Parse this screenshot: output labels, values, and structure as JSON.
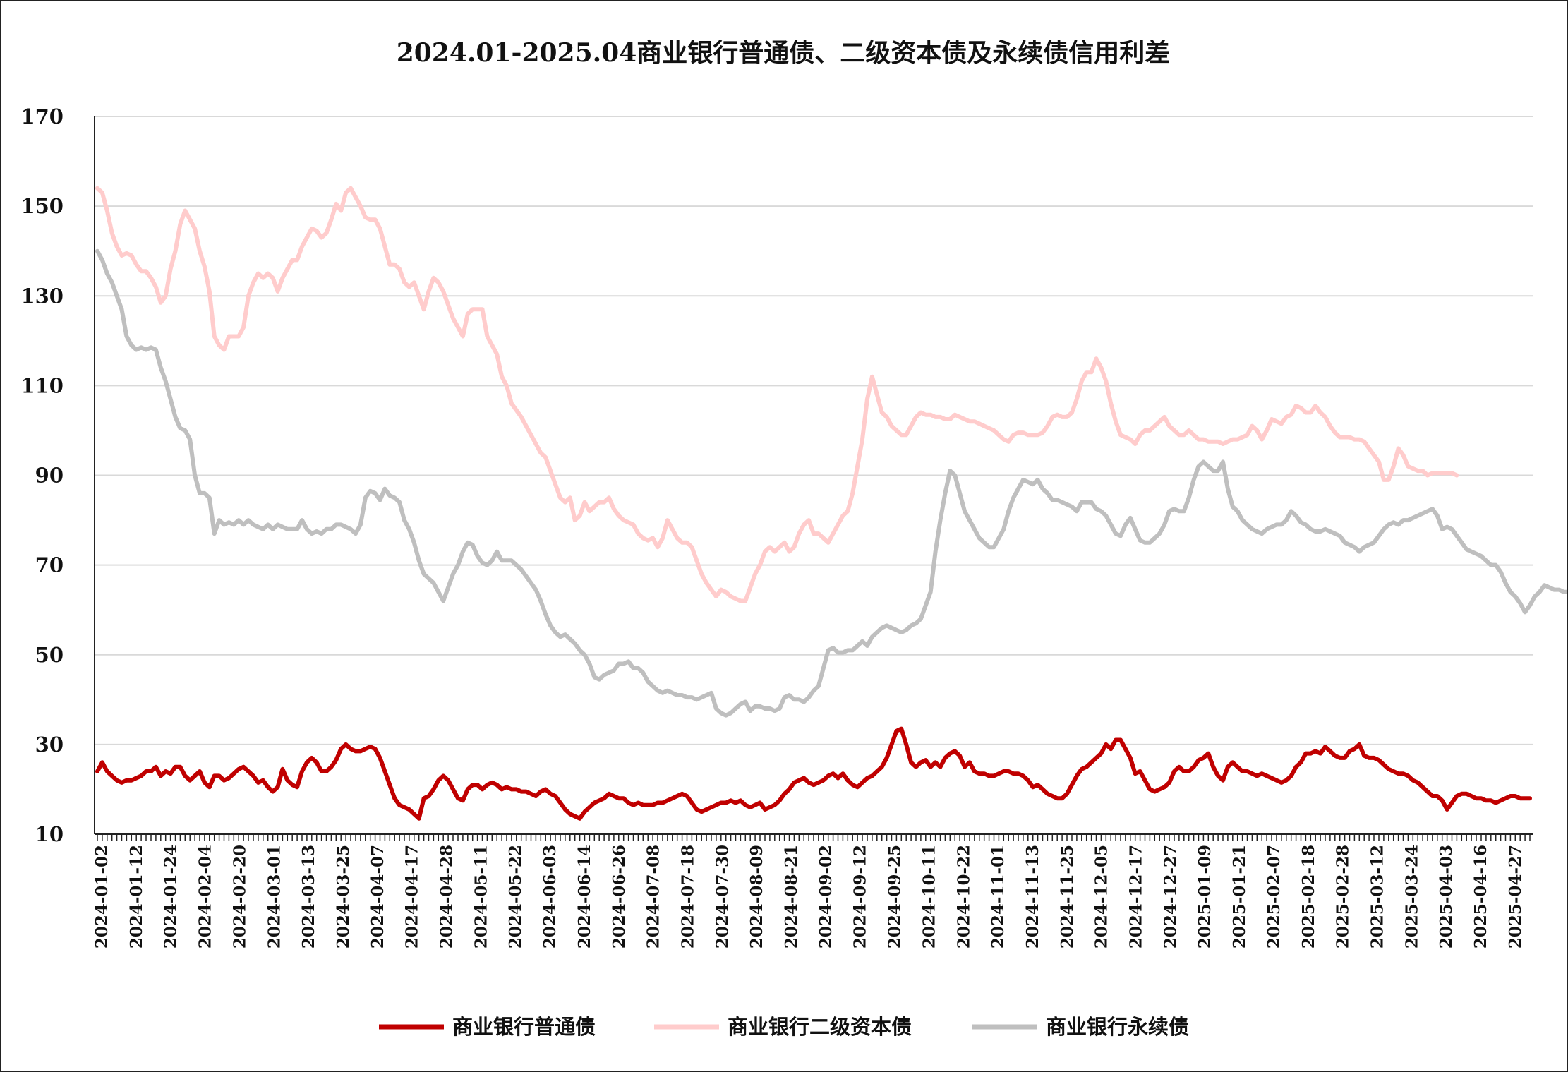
{
  "chart_data": {
    "type": "line",
    "title": "2024.01-2025.04商业银行普通债、二级资本债及永续债信用利差",
    "xlabel": "",
    "ylabel": "",
    "ylim": [
      10,
      170
    ],
    "yticks": [
      10,
      30,
      50,
      70,
      90,
      110,
      130,
      150,
      170
    ],
    "grid": "horizontal",
    "legend_position": "bottom",
    "x_tick_labels": [
      "2024-01-02",
      "2024-01-12",
      "2024-01-24",
      "2024-02-04",
      "2024-02-20",
      "2024-03-01",
      "2024-03-13",
      "2024-03-25",
      "2024-04-07",
      "2024-04-17",
      "2024-04-28",
      "2024-05-11",
      "2024-05-22",
      "2024-06-03",
      "2024-06-14",
      "2024-06-26",
      "2024-07-08",
      "2024-07-18",
      "2024-07-30",
      "2024-08-09",
      "2024-08-21",
      "2024-09-02",
      "2024-09-12",
      "2024-09-25",
      "2024-10-11",
      "2024-10-22",
      "2024-11-01",
      "2024-11-13",
      "2024-11-25",
      "2024-12-05",
      "2024-12-17",
      "2024-12-27",
      "2025-01-09",
      "2025-01-21",
      "2025-02-07",
      "2025-02-18",
      "2025-02-28",
      "2025-03-12",
      "2025-03-24",
      "2025-04-03",
      "2025-04-16",
      "2025-04-27"
    ],
    "series": [
      {
        "name": "商业银行普通债",
        "color": "#c00000",
        "values": [
          24,
          26,
          24,
          23,
          22,
          21.5,
          22,
          22,
          22.5,
          23,
          24,
          24,
          25,
          23,
          24,
          23.5,
          25,
          25,
          23,
          22,
          23,
          24,
          21.5,
          20.5,
          23,
          23,
          22,
          22.5,
          23.5,
          24.5,
          25,
          24,
          23,
          21.5,
          22,
          20.5,
          19.5,
          20.5,
          24.5,
          22,
          21,
          20.5,
          24,
          26,
          27,
          26,
          24,
          24,
          25,
          26.5,
          29,
          30,
          29,
          28.5,
          28.5,
          29,
          29.5,
          29,
          27,
          24,
          21,
          18,
          16.5,
          16,
          15.5,
          14.5,
          13.5,
          18,
          18.5,
          20,
          22,
          23,
          22,
          20,
          18,
          17.5,
          20,
          21,
          21,
          20,
          21,
          21.5,
          21,
          20,
          20.5,
          20,
          20,
          19.5,
          19.5,
          19,
          18.5,
          19.5,
          20,
          19,
          18.5,
          17,
          15.5,
          14.5,
          14,
          13.5,
          15,
          16,
          17,
          17.5,
          18,
          19,
          18.5,
          18,
          18,
          17,
          16.5,
          17,
          16.5,
          16.5,
          16.5,
          17,
          17,
          17.5,
          18,
          18.5,
          19,
          18.5,
          17,
          15.5,
          15,
          15.5,
          16,
          16.5,
          17,
          17,
          17.5,
          17,
          17.5,
          16.5,
          16,
          16.5,
          17,
          15.5,
          16,
          16.5,
          17.5,
          19,
          20,
          21.5,
          22,
          22.5,
          21.5,
          21,
          21.5,
          22,
          23,
          23.5,
          22.5,
          23.5,
          22,
          21,
          20.5,
          21.5,
          22.5,
          23,
          24,
          25,
          27,
          30,
          33,
          33.5,
          30,
          26,
          25,
          26,
          26.5,
          25,
          26,
          25,
          27,
          28,
          28.5,
          27.5,
          25,
          26,
          24,
          23.5,
          23.5,
          23,
          23,
          23.5,
          24,
          24,
          23.5,
          23.5,
          23,
          22,
          20.5,
          21,
          20,
          19,
          18.5,
          18,
          18,
          19,
          21,
          23,
          24.5,
          25,
          26,
          27,
          28,
          30,
          29,
          31,
          31,
          29,
          27,
          23.5,
          24,
          22,
          20,
          19.5,
          20,
          20.5,
          21.5,
          24,
          25,
          24,
          24,
          25,
          26.5,
          27,
          28,
          25,
          23,
          22,
          25,
          26,
          25,
          24,
          24,
          23.5,
          23,
          23.5,
          23,
          22.5,
          22,
          21.5,
          22,
          23,
          25,
          26,
          28,
          28,
          28.5,
          28,
          29.5,
          28.5,
          27.5,
          27,
          27,
          28.5,
          29,
          30,
          27.5,
          27,
          27,
          26.5,
          25.5,
          24.5,
          24,
          23.5,
          23.5,
          23,
          22,
          21.5,
          20.5,
          19.5,
          18.5,
          18.5,
          17.5,
          15.5,
          17,
          18.5,
          19,
          19,
          18.5,
          18,
          18,
          17.5,
          17.5,
          17,
          17.5,
          18,
          18.5,
          18.5,
          18,
          18,
          18
        ]
      },
      {
        "name": "商业银行二级资本债",
        "color": "#ffcccc",
        "values": [
          154,
          153,
          149,
          144,
          141,
          139,
          139.5,
          139,
          137,
          135.5,
          135.5,
          134,
          132,
          128.5,
          130,
          136,
          140,
          146,
          149,
          147,
          145,
          140,
          136.5,
          131,
          121,
          119,
          118,
          121,
          121,
          121,
          123,
          130,
          133,
          135,
          134,
          135,
          134,
          131,
          134,
          136,
          138,
          138,
          141,
          143,
          145,
          144.5,
          143,
          144,
          147,
          150.5,
          149,
          153,
          154,
          152,
          150,
          147.5,
          147,
          147,
          145,
          141,
          137,
          137,
          136,
          133,
          132,
          133,
          130,
          127,
          131,
          134,
          133,
          131,
          128,
          125,
          123,
          121,
          126,
          127,
          127,
          127,
          121,
          119,
          117,
          112,
          110,
          106,
          104.5,
          103,
          101,
          99,
          97,
          95,
          94,
          91,
          88,
          85,
          84,
          85,
          80,
          81,
          84,
          82,
          83,
          84,
          84,
          85,
          82.5,
          81,
          80,
          79.5,
          79,
          77,
          76,
          75.5,
          76,
          74,
          76,
          80,
          78,
          76,
          75,
          75,
          74,
          71,
          68,
          66,
          64.5,
          63,
          64.5,
          64,
          63,
          62.5,
          62,
          62,
          65,
          68,
          70,
          73,
          74,
          73,
          74,
          75,
          73,
          74,
          77,
          79,
          80,
          77,
          77,
          76,
          75,
          77,
          79,
          81,
          82,
          86,
          92,
          98,
          107,
          112,
          108,
          104,
          103,
          101,
          100,
          99,
          99,
          101,
          103,
          104,
          103.5,
          103.5,
          103,
          103,
          102.5,
          102.5,
          103.5,
          103,
          102.5,
          102,
          102,
          101.5,
          101,
          100.5,
          100,
          99,
          98,
          97.5,
          99,
          99.5,
          99.5,
          99,
          99,
          99,
          99.5,
          101,
          103,
          103.5,
          103,
          103,
          104,
          107,
          111,
          113,
          113,
          116,
          114,
          111,
          106,
          102,
          99,
          98.5,
          98,
          97,
          99,
          100,
          100,
          101,
          102,
          103,
          101,
          100,
          99,
          99,
          100,
          99,
          98,
          98,
          97.5,
          97.5,
          97.5,
          97,
          97.5,
          98,
          98,
          98.5,
          99,
          101,
          100,
          98,
          100,
          102.5,
          102,
          101.5,
          103,
          103.5,
          105.5,
          105,
          104,
          104,
          105.5,
          104,
          103,
          101,
          99.5,
          98.5,
          98.5,
          98.5,
          98,
          98,
          97.5,
          96,
          94.5,
          93,
          89,
          89,
          92,
          96,
          94.5,
          92,
          91.5,
          91,
          91,
          90,
          90.5,
          90.5,
          90.5,
          90.5,
          90.5,
          90
        ]
      },
      {
        "name": "商业银行永续债",
        "color": "#bfbfbf",
        "values": [
          140,
          138,
          135,
          133,
          130,
          127,
          121,
          119,
          118,
          118.5,
          118,
          118.5,
          118,
          114,
          111,
          107,
          103,
          100.5,
          100,
          98,
          90,
          86,
          86,
          85,
          77,
          80,
          79,
          79.5,
          79,
          80,
          79,
          80,
          79,
          78.5,
          78,
          79,
          78,
          79,
          78.5,
          78,
          78,
          78,
          80,
          78,
          77,
          77.5,
          77,
          78,
          78,
          79,
          79,
          78.5,
          78,
          77,
          79,
          85,
          86.5,
          86,
          84.5,
          87,
          85.5,
          85,
          84,
          80,
          78,
          75,
          71,
          68,
          67,
          66,
          64,
          62,
          65,
          68,
          70,
          73,
          75,
          74.5,
          72,
          70.5,
          70,
          71,
          73,
          71,
          71,
          71,
          70,
          69,
          67.5,
          66,
          64.5,
          62,
          59,
          56.5,
          55,
          54,
          54.5,
          53.5,
          52.5,
          51,
          50,
          48,
          45,
          44.5,
          45.5,
          46,
          46.5,
          48,
          48,
          48.5,
          47,
          47,
          46,
          44,
          43,
          42,
          41.5,
          42,
          41.5,
          41,
          41,
          40.5,
          40.5,
          40,
          40.5,
          41,
          41.5,
          38,
          37,
          36.5,
          37,
          38,
          39,
          39.5,
          37.5,
          38.5,
          38.5,
          38,
          38,
          37.5,
          38,
          40.5,
          41,
          40,
          40,
          39.5,
          40.5,
          42,
          43,
          47,
          51,
          51.5,
          50.5,
          50.5,
          51,
          51,
          52,
          53,
          52,
          54,
          55,
          56,
          56.5,
          56,
          55.5,
          55,
          55.5,
          56.5,
          57,
          58,
          61,
          64,
          73,
          80,
          86,
          91,
          90,
          86,
          82,
          80,
          78,
          76,
          75,
          74,
          74,
          76,
          78,
          82,
          85,
          87,
          89,
          88.5,
          88,
          89,
          87,
          86,
          84.5,
          84.5,
          84,
          83.5,
          83,
          82,
          84,
          84,
          84,
          82.5,
          82,
          81,
          79,
          77,
          76.5,
          79,
          80.5,
          78,
          75.5,
          75,
          75,
          76,
          77,
          79,
          82,
          82.5,
          82,
          82,
          85,
          89,
          92,
          93,
          92,
          91,
          91,
          93,
          87,
          83,
          82,
          80,
          79,
          78,
          77.5,
          77,
          78,
          78.5,
          79,
          79,
          80,
          82,
          81,
          79.5,
          79,
          78,
          77.5,
          77.5,
          78,
          77.5,
          77,
          76.5,
          75,
          74.5,
          74,
          73,
          74,
          74.5,
          75,
          76.5,
          78,
          79,
          79.5,
          79,
          80,
          80,
          80.5,
          81,
          81.5,
          82,
          82.5,
          81,
          78,
          78.5,
          78,
          76.5,
          75,
          73.5,
          73,
          72.5,
          72,
          71,
          70,
          70,
          68.5,
          66,
          64,
          63,
          61.5,
          59.5,
          61,
          63,
          64,
          65.5,
          65,
          64.5,
          64.5,
          64,
          64,
          64,
          64.5,
          64,
          64.5,
          65.5,
          66.5,
          66,
          65.5,
          65,
          64.5
        ]
      }
    ]
  }
}
